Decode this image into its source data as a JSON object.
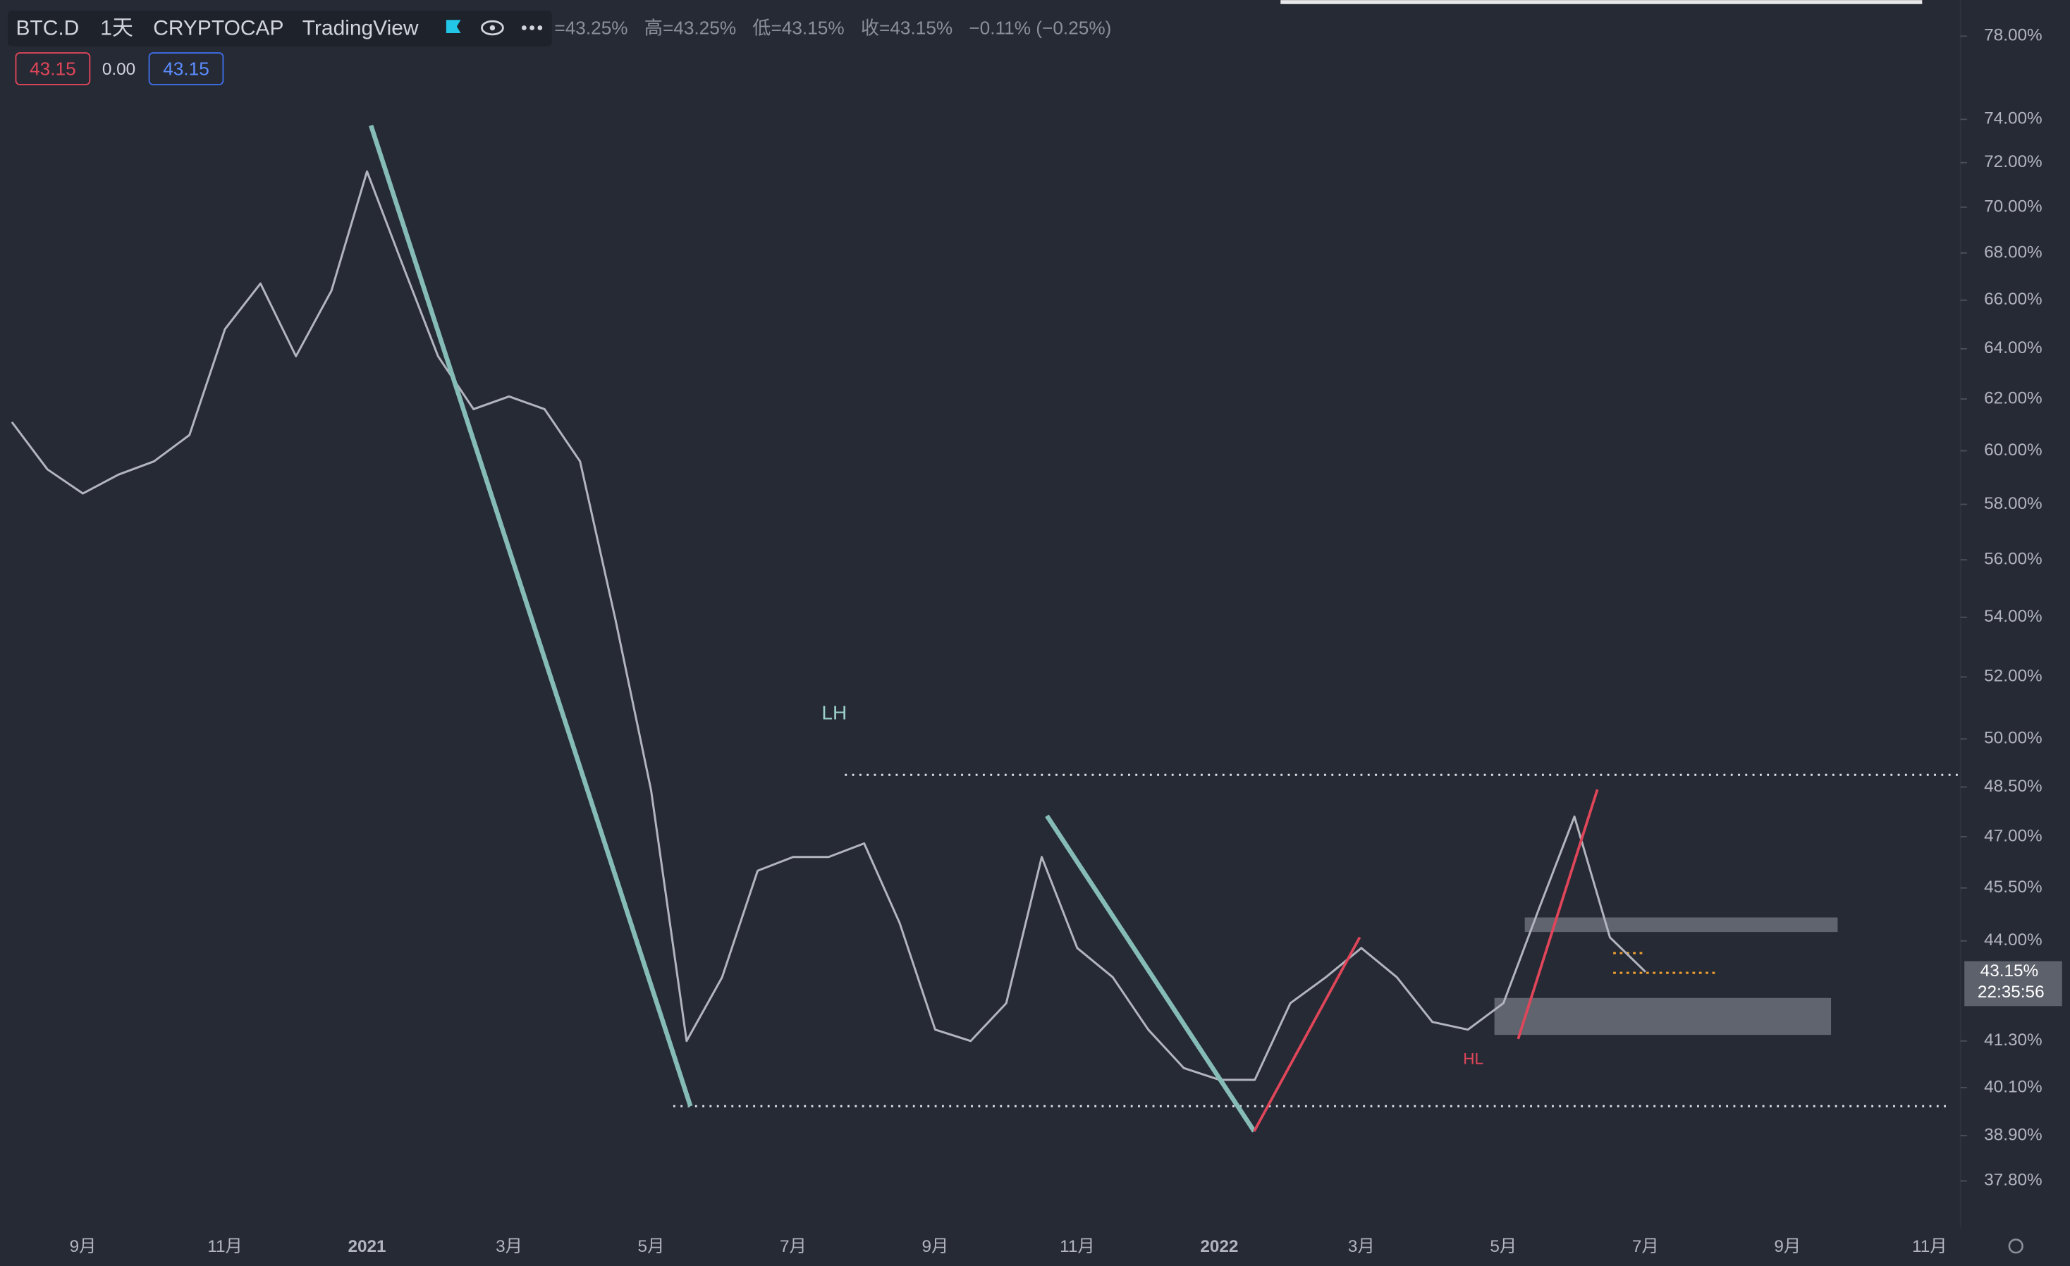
{
  "header": {
    "symbol": "BTC.D",
    "interval": "1天",
    "exchange": "CRYPTOCAP",
    "source": "TradingView",
    "open": "=43.25%",
    "high": "高=43.25%",
    "low": "低=43.15%",
    "close": "收=43.15%",
    "change": "−0.11% (−0.25%)",
    "indicator_values": [
      "43.15",
      "0.00",
      "43.15"
    ]
  },
  "chart_data": {
    "type": "line",
    "color": "#b2b5be",
    "log_scale": true,
    "grid": false,
    "categories": [
      null,
      null,
      "9月",
      null,
      null,
      null,
      "11月",
      null,
      null,
      null,
      "2021",
      null,
      null,
      null,
      "3月",
      null,
      null,
      null,
      "5月",
      null,
      null,
      null,
      "7月",
      null,
      null,
      null,
      "9月",
      null,
      null,
      null,
      "11月",
      null,
      null,
      null,
      "2022",
      null,
      null,
      null,
      "3月",
      null,
      null,
      null,
      "5月",
      null,
      null,
      null,
      "7月",
      null,
      null,
      null,
      "9月",
      null,
      null,
      null,
      "11月",
      null
    ],
    "values": [
      61.1,
      59.3,
      58.4,
      59.1,
      59.6,
      60.6,
      64.8,
      66.7,
      63.7,
      66.4,
      71.6,
      67.5,
      63.7,
      61.6,
      62.1,
      61.6,
      59.6,
      53.9,
      48.4,
      41.3,
      43.0,
      46.0,
      46.4,
      46.4,
      46.8,
      44.5,
      41.6,
      41.3,
      42.3,
      46.4,
      43.8,
      43.0,
      41.6,
      40.6,
      40.3,
      40.3,
      42.3,
      43.0,
      43.8,
      43.0,
      41.8,
      41.6,
      42.3,
      44.9,
      47.6,
      44.1,
      43.15,
      null,
      null,
      null,
      null,
      null,
      null,
      null,
      null,
      null
    ],
    "ylim": [
      36.7,
      79.8
    ],
    "yticks": [
      {
        "value": 78,
        "label": "78.00%"
      },
      {
        "value": 74,
        "label": "74.00%"
      },
      {
        "value": 72,
        "label": "72.00%"
      },
      {
        "value": 70,
        "label": "70.00%"
      },
      {
        "value": 68,
        "label": "68.00%"
      },
      {
        "value": 66,
        "label": "66.00%"
      },
      {
        "value": 64,
        "label": "64.00%"
      },
      {
        "value": 62,
        "label": "62.00%"
      },
      {
        "value": 60,
        "label": "60.00%"
      },
      {
        "value": 58,
        "label": "58.00%"
      },
      {
        "value": 56,
        "label": "56.00%"
      },
      {
        "value": 54,
        "label": "54.00%"
      },
      {
        "value": 52,
        "label": "52.00%"
      },
      {
        "value": 50,
        "label": "50.00%"
      },
      {
        "value": 48.5,
        "label": "48.50%"
      },
      {
        "value": 47,
        "label": "47.00%"
      },
      {
        "value": 45.5,
        "label": "45.50%"
      },
      {
        "value": 44,
        "label": "44.00%"
      },
      {
        "value": 41.3,
        "label": "41.30%"
      },
      {
        "value": 40.1,
        "label": "40.10%"
      },
      {
        "value": 38.9,
        "label": "38.90%"
      },
      {
        "value": 37.8,
        "label": "37.80%"
      }
    ],
    "last_price": {
      "value": 43.15,
      "label": "43.15%"
    },
    "countdown": "22:35:56",
    "annotations": [
      "LH",
      "HL"
    ]
  }
}
